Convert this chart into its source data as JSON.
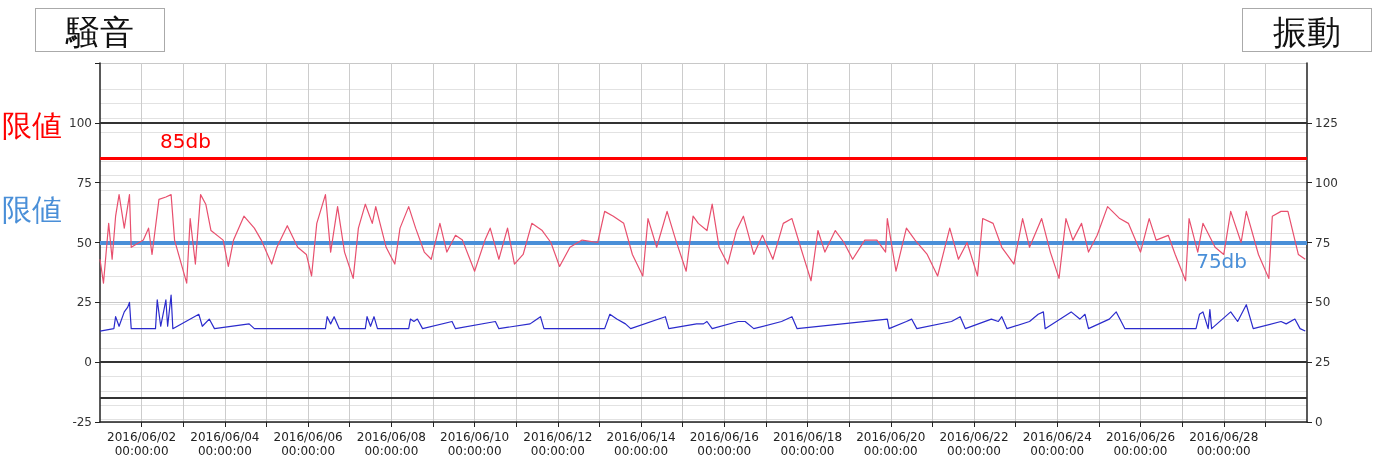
{
  "chart_data": {
    "type": "line",
    "ylabel": "騒音",
    "y2label": "振動",
    "annotations": [
      "限値",
      "限値"
    ],
    "xlim": [
      "2016-06-01",
      "2016-06-30"
    ],
    "xticks": [
      {
        "value": "2016-06-02",
        "label": "2016/06/02\n00:00:00"
      },
      {
        "value": "2016-06-03",
        "label": null
      },
      {
        "value": "2016-06-04",
        "label": "2016/06/04\n00:00:00"
      },
      {
        "value": "2016-06-05",
        "label": null
      },
      {
        "value": "2016-06-06",
        "label": "2016/06/06\n00:00:00"
      },
      {
        "value": "2016-06-07",
        "label": null
      },
      {
        "value": "2016-06-08",
        "label": "2016/06/08\n00:00:00"
      },
      {
        "value": "2016-06-09",
        "label": null
      },
      {
        "value": "2016-06-10",
        "label": "2016/06/10\n00:00:00"
      },
      {
        "value": "2016-06-11",
        "label": null
      },
      {
        "value": "2016-06-12",
        "label": "2016/06/12\n00:00:00"
      },
      {
        "value": "2016-06-13",
        "label": null
      },
      {
        "value": "2016-06-14",
        "label": "2016/06/14\n00:00:00"
      },
      {
        "value": "2016-06-15",
        "label": null
      },
      {
        "value": "2016-06-16",
        "label": "2016/06/16\n00:00:00"
      },
      {
        "value": "2016-06-17",
        "label": null
      },
      {
        "value": "2016-06-18",
        "label": "2016/06/18\n00:00:00"
      },
      {
        "value": "2016-06-19",
        "label": null
      },
      {
        "value": "2016-06-20",
        "label": "2016/06/20\n00:00:00"
      },
      {
        "value": "2016-06-21",
        "label": null
      },
      {
        "value": "2016-06-22",
        "label": "2016/06/22\n00:00:00"
      },
      {
        "value": "2016-06-23",
        "label": null
      },
      {
        "value": "2016-06-24",
        "label": "2016/06/24\n00:00:00"
      },
      {
        "value": "2016-06-25",
        "label": null
      },
      {
        "value": "2016-06-26",
        "label": "2016/06/26\n00:00:00"
      },
      {
        "value": "2016-06-27",
        "label": null
      },
      {
        "value": "2016-06-28",
        "label": "2016/06/28\n00:00:00"
      },
      {
        "value": "2016-06-29",
        "label": null
      }
    ],
    "ylim": [
      -25,
      125
    ],
    "yticks": [
      -25,
      0,
      25,
      50,
      75,
      100,
      {
        "value": 125,
        "label": null
      }
    ],
    "y2lim": [
      0,
      150
    ],
    "y2ticks": [
      0,
      25,
      50,
      75,
      100,
      125
    ],
    "grid": true,
    "marker": "none",
    "line_style": "solid",
    "ref_lines": [
      {
        "axis": "y",
        "value": 85,
        "label": "85db",
        "color": "#ff0000"
      },
      {
        "axis": "y2",
        "value": 75,
        "label": "75db",
        "color": "#4a8fd8"
      },
      {
        "axis": "y",
        "value": 100,
        "label": null,
        "color": "#333333"
      },
      {
        "axis": "y",
        "value": 0,
        "label": null,
        "color": "#333333"
      },
      {
        "axis": "y",
        "value": -15,
        "label": null,
        "color": "#333333"
      }
    ],
    "series": [
      {
        "color": "#e8506e",
        "axis": "y",
        "x": [
          "2016-06-01T00:00",
          "2016-06-01T02:00",
          "2016-06-01T05:00",
          "2016-06-01T07:00",
          "2016-06-01T09:00",
          "2016-06-01T11:00",
          "2016-06-01T14:00",
          "2016-06-01T17:00",
          "2016-06-01T18:00",
          "2016-06-02T01:00",
          "2016-06-02T04:00",
          "2016-06-02T06:00",
          "2016-06-02T10:00",
          "2016-06-02T14:00",
          "2016-06-02T17:00",
          "2016-06-02T19:00",
          "2016-06-03T02:00",
          "2016-06-03T04:00",
          "2016-06-03T07:00",
          "2016-06-03T10:00",
          "2016-06-03T13:00",
          "2016-06-03T16:00",
          "2016-06-03T23:00",
          "2016-06-04T02:00",
          "2016-06-04T05:00",
          "2016-06-04T11:00",
          "2016-06-04T17:00",
          "2016-06-04T21:00",
          "2016-06-05T03:00",
          "2016-06-05T06:00",
          "2016-06-05T12:00",
          "2016-06-05T18:00",
          "2016-06-05T23:00",
          "2016-06-06T02:00",
          "2016-06-06T05:00",
          "2016-06-06T10:00",
          "2016-06-06T13:00",
          "2016-06-06T17:00",
          "2016-06-06T21:00",
          "2016-06-07T02:00",
          "2016-06-07T05:00",
          "2016-06-07T09:00",
          "2016-06-07T13:00",
          "2016-06-07T15:00",
          "2016-06-07T21:00",
          "2016-06-08T02:00",
          "2016-06-08T05:00",
          "2016-06-08T10:00",
          "2016-06-08T14:00",
          "2016-06-08T19:00",
          "2016-06-08T23:00",
          "2016-06-09T04:00",
          "2016-06-09T08:00",
          "2016-06-09T13:00",
          "2016-06-09T17:00",
          "2016-06-10T00:00",
          "2016-06-10T06:00",
          "2016-06-10T09:00",
          "2016-06-10T14:00",
          "2016-06-10T19:00",
          "2016-06-10T23:00",
          "2016-06-11T04:00",
          "2016-06-11T09:00",
          "2016-06-11T15:00",
          "2016-06-11T20:00",
          "2016-06-12T01:00",
          "2016-06-12T07:00",
          "2016-06-12T14:00",
          "2016-06-12T23:00",
          "2016-06-13T03:00",
          "2016-06-13T08:00",
          "2016-06-13T14:00",
          "2016-06-13T19:00",
          "2016-06-14T01:00",
          "2016-06-14T04:00",
          "2016-06-14T09:00",
          "2016-06-14T15:00",
          "2016-06-14T20:00",
          "2016-06-15T02:00",
          "2016-06-15T06:00",
          "2016-06-15T09:00",
          "2016-06-15T14:00",
          "2016-06-15T17:00",
          "2016-06-15T21:00",
          "2016-06-16T02:00",
          "2016-06-16T07:00",
          "2016-06-16T11:00",
          "2016-06-16T17:00",
          "2016-06-16T22:00",
          "2016-06-17T04:00",
          "2016-06-17T10:00",
          "2016-06-17T15:00",
          "2016-06-17T20:00",
          "2016-06-18T02:00",
          "2016-06-18T06:00",
          "2016-06-18T10:00",
          "2016-06-18T16:00",
          "2016-06-18T21:00",
          "2016-06-19T02:00",
          "2016-06-19T09:00",
          "2016-06-19T16:00",
          "2016-06-19T21:00",
          "2016-06-19T22:00",
          "2016-06-20T03:00",
          "2016-06-20T09:00",
          "2016-06-20T14:00",
          "2016-06-20T21:00",
          "2016-06-21T03:00",
          "2016-06-21T10:00",
          "2016-06-21T15:00",
          "2016-06-21T20:00",
          "2016-06-22T02:00",
          "2016-06-22T05:00",
          "2016-06-22T11:00",
          "2016-06-22T16:00",
          "2016-06-22T23:00",
          "2016-06-23T04:00",
          "2016-06-23T08:00",
          "2016-06-23T15:00",
          "2016-06-23T20:00",
          "2016-06-24T01:00",
          "2016-06-24T05:00",
          "2016-06-24T09:00",
          "2016-06-24T14:00",
          "2016-06-24T18:00",
          "2016-06-24T23:00",
          "2016-06-25T05:00",
          "2016-06-25T12:00",
          "2016-06-25T17:00",
          "2016-06-26T00:00",
          "2016-06-26T05:00",
          "2016-06-26T09:00",
          "2016-06-26T16:00",
          "2016-06-26T20:00",
          "2016-06-27T02:00",
          "2016-06-27T04:00",
          "2016-06-27T09:00",
          "2016-06-27T12:00",
          "2016-06-27T19:00",
          "2016-06-28T00:00",
          "2016-06-28T04:00",
          "2016-06-28T10:00",
          "2016-06-28T13:00",
          "2016-06-28T20:00",
          "2016-06-29T02:00",
          "2016-06-29T04:00",
          "2016-06-29T09:00",
          "2016-06-29T13:00",
          "2016-06-29T19:00",
          "2016-06-29T23:00"
        ],
        "values": [
          43,
          33,
          58,
          43,
          61,
          70,
          56,
          70,
          48,
          51,
          56,
          45,
          68,
          69,
          70,
          51,
          33,
          60,
          41,
          70,
          66,
          55,
          51,
          40,
          51,
          61,
          56,
          51,
          41,
          48,
          57,
          48,
          45,
          36,
          58,
          70,
          46,
          65,
          46,
          35,
          56,
          66,
          58,
          65,
          48,
          41,
          56,
          65,
          56,
          46,
          43,
          58,
          46,
          53,
          51,
          38,
          51,
          56,
          43,
          56,
          41,
          45,
          58,
          55,
          50,
          40,
          48,
          51,
          50,
          63,
          61,
          58,
          45,
          36,
          60,
          48,
          63,
          51,
          38,
          61,
          58,
          55,
          66,
          48,
          41,
          55,
          61,
          45,
          53,
          43,
          58,
          60,
          48,
          34,
          55,
          46,
          55,
          50,
          43,
          51,
          51,
          46,
          60,
          38,
          56,
          51,
          45,
          36,
          56,
          43,
          50,
          36,
          60,
          58,
          48,
          41,
          60,
          48,
          60,
          46,
          35,
          60,
          51,
          58,
          46,
          53,
          65,
          60,
          58,
          46,
          60,
          51,
          53,
          45,
          34,
          60,
          46,
          58,
          48,
          45,
          63,
          50,
          63,
          45,
          35,
          61,
          63,
          63,
          45,
          43
        ]
      },
      {
        "color": "#2b2bcc",
        "axis": "y2",
        "x": [
          "2016-06-01T00:00",
          "2016-06-01T08:00",
          "2016-06-01T09:00",
          "2016-06-01T11:00",
          "2016-06-01T14:00",
          "2016-06-01T16:00",
          "2016-06-01T17:00",
          "2016-06-01T18:00",
          "2016-06-02T08:00",
          "2016-06-02T09:00",
          "2016-06-02T11:00",
          "2016-06-02T14:00",
          "2016-06-02T15:00",
          "2016-06-02T17:00",
          "2016-06-02T18:00",
          "2016-06-03T09:00",
          "2016-06-03T11:00",
          "2016-06-03T15:00",
          "2016-06-03T18:00",
          "2016-06-04T14:00",
          "2016-06-04T17:00",
          "2016-06-06T10:00",
          "2016-06-06T11:00",
          "2016-06-06T13:00",
          "2016-06-06T15:00",
          "2016-06-06T18:00",
          "2016-06-07T09:00",
          "2016-06-07T10:00",
          "2016-06-07T12:00",
          "2016-06-07T14:00",
          "2016-06-07T16:00",
          "2016-06-08T10:00",
          "2016-06-08T11:00",
          "2016-06-08T13:00",
          "2016-06-08T15:00",
          "2016-06-08T18:00",
          "2016-06-09T11:00",
          "2016-06-09T13:00",
          "2016-06-10T12:00",
          "2016-06-10T14:00",
          "2016-06-11T08:00",
          "2016-06-11T10:00",
          "2016-06-11T14:00",
          "2016-06-11T16:00",
          "2016-06-13T03:00",
          "2016-06-13T06:00",
          "2016-06-13T10:00",
          "2016-06-13T15:00",
          "2016-06-13T18:00",
          "2016-06-14T14:00",
          "2016-06-14T16:00",
          "2016-06-15T08:00",
          "2016-06-15T12:00",
          "2016-06-15T14:00",
          "2016-06-15T17:00",
          "2016-06-16T08:00",
          "2016-06-16T12:00",
          "2016-06-16T17:00",
          "2016-06-17T09:00",
          "2016-06-17T15:00",
          "2016-06-17T18:00",
          "2016-06-19T22:00",
          "2016-06-19T23:00",
          "2016-06-20T09:00",
          "2016-06-20T12:00",
          "2016-06-20T15:00",
          "2016-06-21T11:00",
          "2016-06-21T16:00",
          "2016-06-21T19:00",
          "2016-06-22T10:00",
          "2016-06-22T14:00",
          "2016-06-22T16:00",
          "2016-06-22T19:00",
          "2016-06-23T08:00",
          "2016-06-23T13:00",
          "2016-06-23T16:00",
          "2016-06-23T17:00",
          "2016-06-24T08:00",
          "2016-06-24T13:00",
          "2016-06-24T16:00",
          "2016-06-24T18:00",
          "2016-06-25T06:00",
          "2016-06-25T10:00",
          "2016-06-25T15:00",
          "2016-06-27T08:00",
          "2016-06-27T10:00",
          "2016-06-27T12:00",
          "2016-06-27T15:00",
          "2016-06-27T16:00",
          "2016-06-27T17:00",
          "2016-06-28T04:00",
          "2016-06-28T08:00",
          "2016-06-28T13:00",
          "2016-06-28T17:00",
          "2016-06-29T09:00",
          "2016-06-29T12:00",
          "2016-06-29T17:00",
          "2016-06-29T20:00",
          "2016-06-29T23:00"
        ],
        "values": [
          38,
          39,
          44,
          40,
          46,
          48,
          50,
          39,
          39,
          51,
          40,
          51,
          40,
          53,
          39,
          45,
          40,
          43,
          39,
          41,
          39,
          39,
          44,
          41,
          44,
          39,
          39,
          44,
          40,
          44,
          39,
          39,
          43,
          42,
          43,
          39,
          42,
          39,
          42,
          39,
          41,
          42,
          44,
          39,
          39,
          45,
          43,
          41,
          39,
          44,
          39,
          41,
          41,
          42,
          39,
          42,
          42,
          39,
          42,
          44,
          39,
          43,
          39,
          42,
          43,
          39,
          42,
          44,
          39,
          43,
          42,
          44,
          39,
          42,
          45,
          46,
          39,
          46,
          43,
          45,
          39,
          43,
          46,
          39,
          39,
          45,
          46,
          39,
          47,
          39,
          46,
          42,
          49,
          39,
          42,
          41,
          43,
          39,
          38
        ]
      }
    ]
  }
}
